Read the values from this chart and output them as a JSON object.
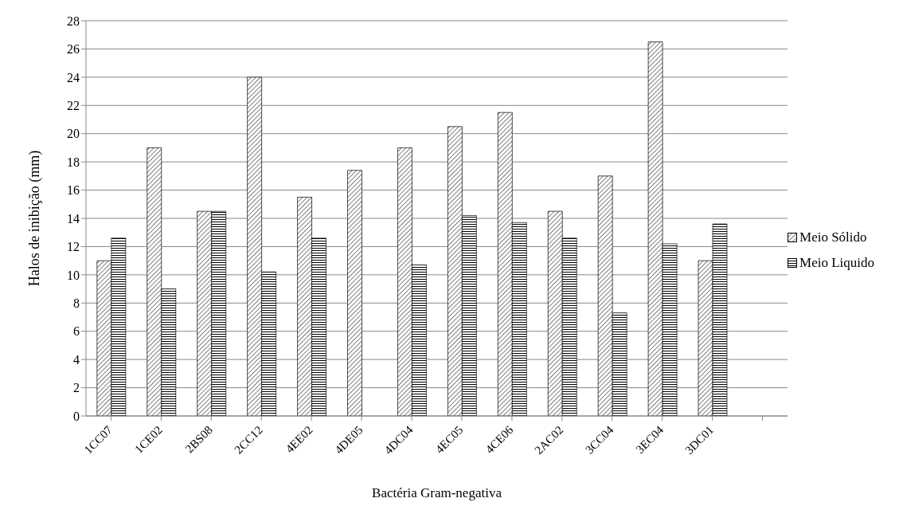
{
  "chart_data": {
    "type": "bar",
    "xlabel": "Bactéria Gram-negativa",
    "ylabel": "Halos de inibição (mm)",
    "categories": [
      "1CC07",
      "1CE02",
      "2BS08",
      "2CC12",
      "4EE02",
      "4DE05",
      "4DC04",
      "4EC05",
      "4CE06",
      "2AC02",
      "3CC04",
      "3EC04",
      "3DC01",
      null
    ],
    "series": [
      {
        "name": "Meio Sólido",
        "color": "#000000",
        "values": [
          11,
          19,
          14.5,
          24,
          15.5,
          17.4,
          19,
          20.5,
          21.5,
          14.5,
          17,
          26.5,
          11,
          null
        ]
      },
      {
        "name": "Meio Liquido",
        "color": "#000000",
        "values": [
          12.6,
          9,
          14.5,
          10.2,
          12.6,
          null,
          10.7,
          14.2,
          13.7,
          12.6,
          7.3,
          12.2,
          13.6,
          null
        ]
      }
    ],
    "ylim": [
      0,
      28
    ],
    "yticks": [
      0,
      2,
      4,
      6,
      8,
      10,
      12,
      14,
      16,
      18,
      20,
      22,
      24,
      26,
      28
    ],
    "grid": "y",
    "legend": "right"
  }
}
